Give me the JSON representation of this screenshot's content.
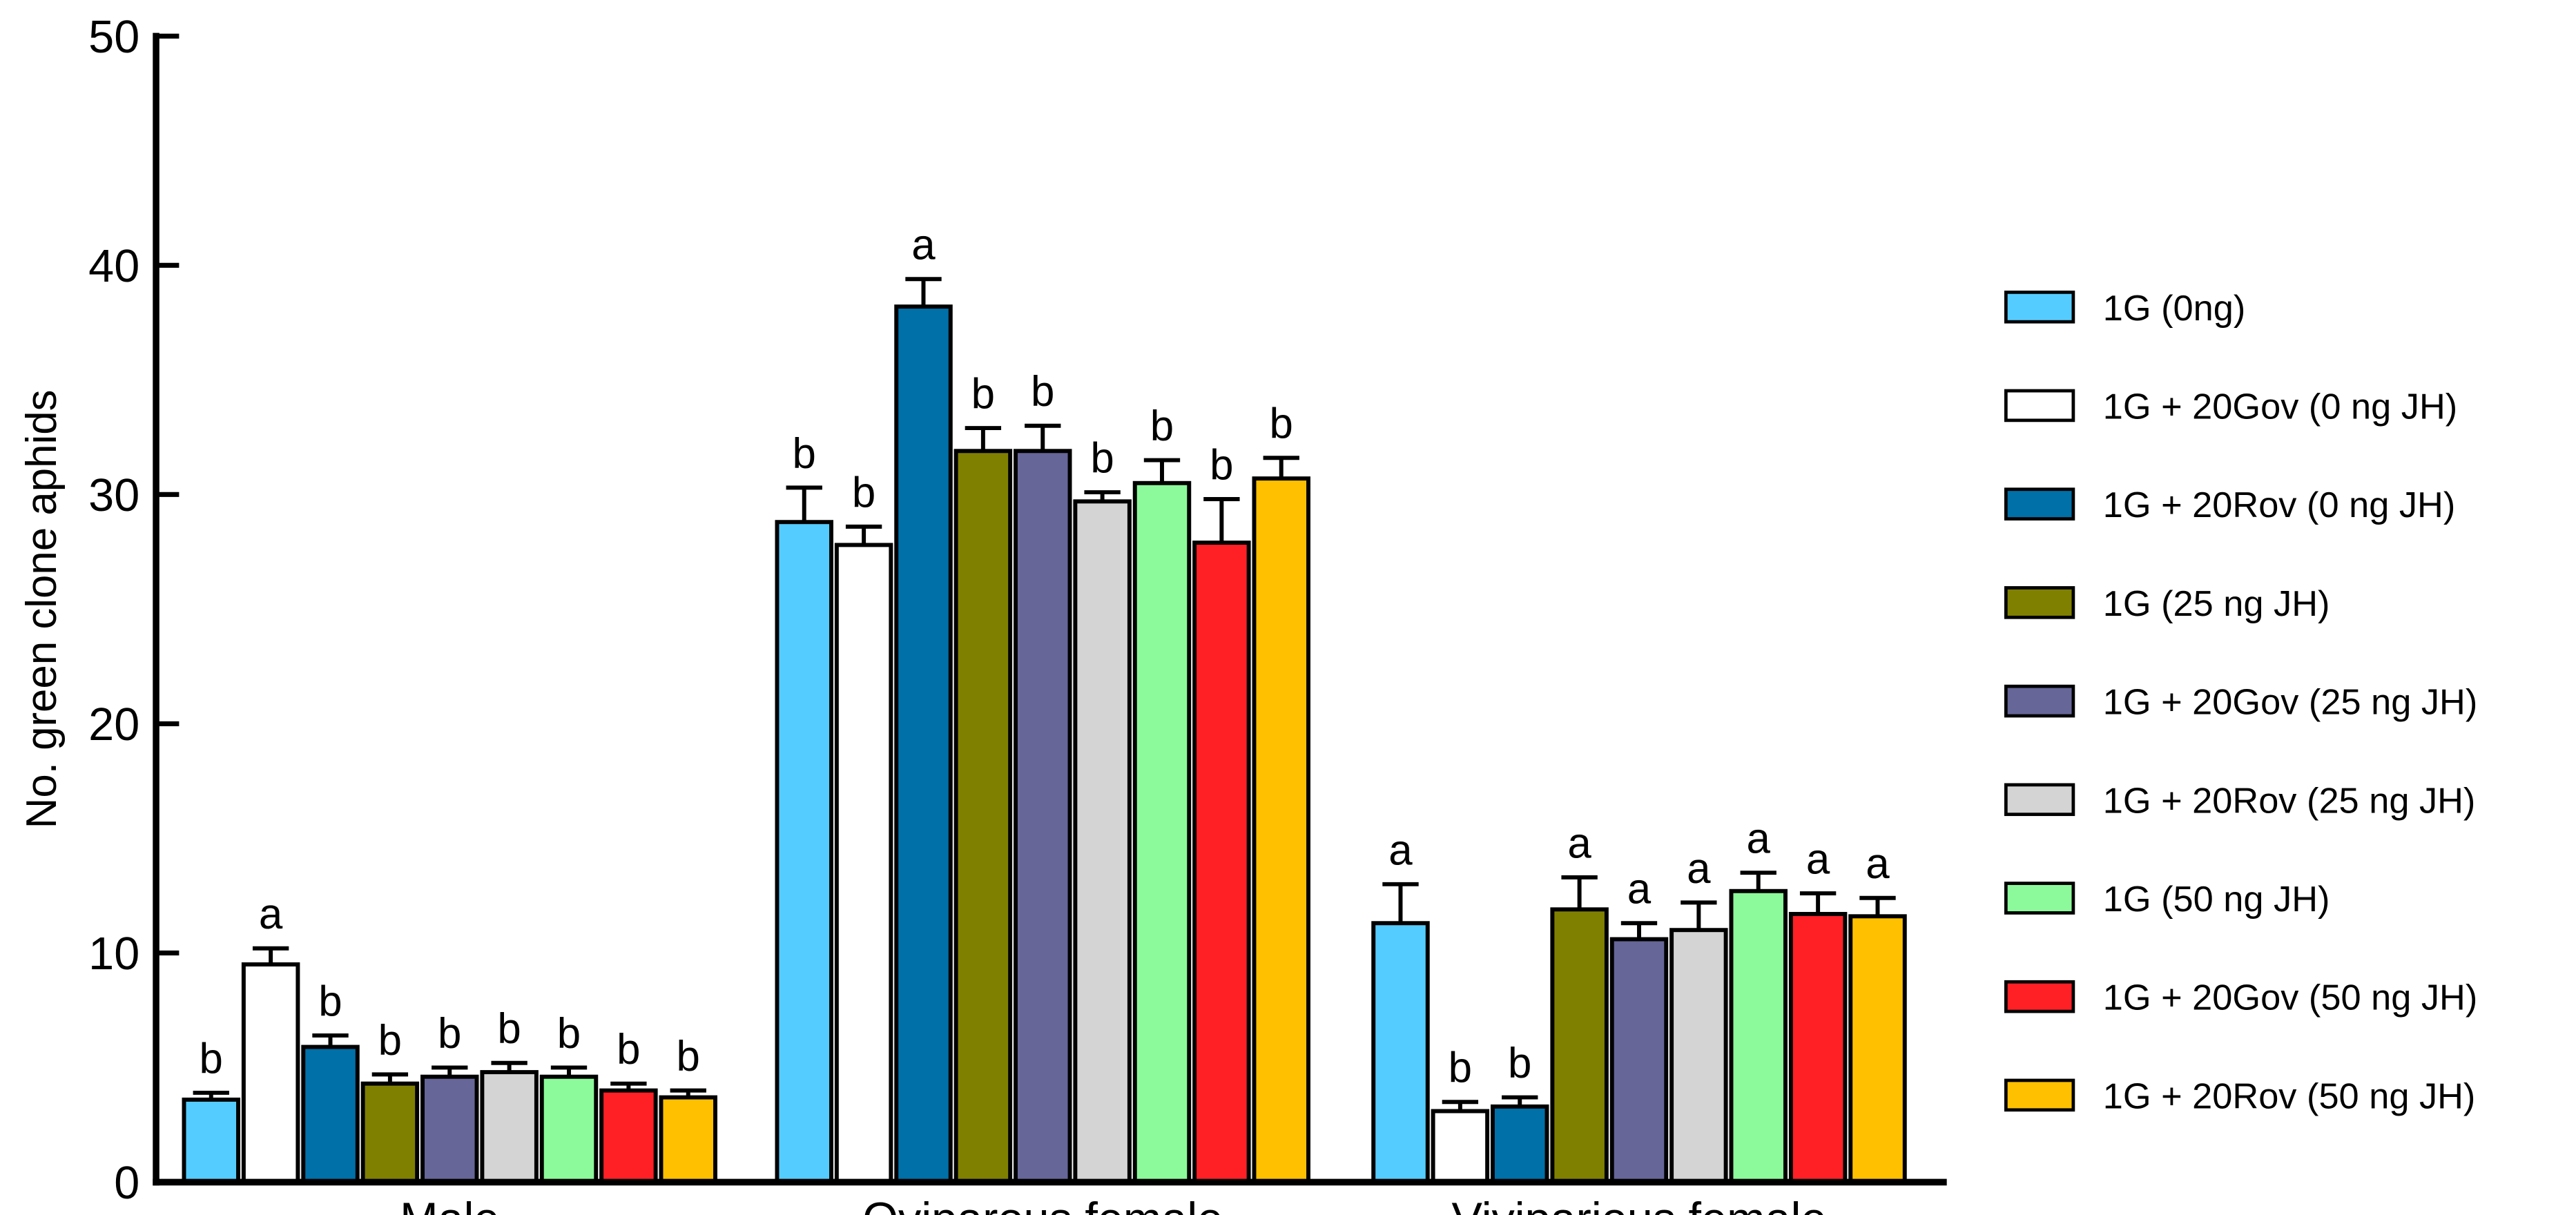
{
  "chart_data": {
    "type": "bar",
    "title": "",
    "xlabel": "",
    "ylabel": "No. green clone aphids",
    "ylim": [
      0,
      50
    ],
    "yticks": [
      "0",
      "10",
      "20",
      "30",
      "40",
      "50"
    ],
    "grid": false,
    "legend_position": "right",
    "categories": [
      "Male",
      "Oviparous female",
      "Viviparious female"
    ],
    "series": [
      {
        "name": "1G (0ng)",
        "color": "#55CCFF",
        "values": [
          3.6,
          28.8,
          11.3
        ],
        "errors": [
          0.3,
          1.5,
          1.7
        ],
        "letters": [
          "b",
          "b",
          "a"
        ]
      },
      {
        "name": "1G + 20Gov (0 ng JH)",
        "color": "#FFFFFF",
        "values": [
          9.5,
          27.8,
          3.1
        ],
        "errors": [
          0.7,
          0.8,
          0.4
        ],
        "letters": [
          "a",
          "b",
          "b"
        ]
      },
      {
        "name": "1G + 20Rov (0 ng JH)",
        "color": "#0070A8",
        "values": [
          5.9,
          38.2,
          3.3
        ],
        "errors": [
          0.5,
          1.2,
          0.4
        ],
        "letters": [
          "b",
          "a",
          "b"
        ]
      },
      {
        "name": "1G (25 ng JH)",
        "color": "#808000",
        "values": [
          4.3,
          31.9,
          11.9
        ],
        "errors": [
          0.4,
          1.0,
          1.4
        ],
        "letters": [
          "b",
          "b",
          "a"
        ]
      },
      {
        "name": "1G + 20Gov (25 ng JH)",
        "color": "#666699",
        "values": [
          4.6,
          31.9,
          10.6
        ],
        "errors": [
          0.4,
          1.1,
          0.7
        ],
        "letters": [
          "b",
          "b",
          "a"
        ]
      },
      {
        "name": "1G + 20Rov (25 ng JH)",
        "color": "#D4D4D4",
        "values": [
          4.8,
          29.7,
          11.0
        ],
        "errors": [
          0.4,
          0.4,
          1.2
        ],
        "letters": [
          "b",
          "b",
          "a"
        ]
      },
      {
        "name": "1G (50 ng JH)",
        "color": "#8CFA9A",
        "values": [
          4.6,
          30.5,
          12.7
        ],
        "errors": [
          0.4,
          1.0,
          0.8
        ],
        "letters": [
          "b",
          "b",
          "a"
        ]
      },
      {
        "name": "1G + 20Gov (50 ng JH)",
        "color": "#FF2026",
        "values": [
          4.0,
          27.9,
          11.7
        ],
        "errors": [
          0.3,
          1.9,
          0.9
        ],
        "letters": [
          "b",
          "b",
          "a"
        ]
      },
      {
        "name": "1G + 20Rov (50 ng JH)",
        "color": "#FFC000",
        "values": [
          3.7,
          30.7,
          11.6
        ],
        "errors": [
          0.3,
          0.9,
          0.8
        ],
        "letters": [
          "b",
          "b",
          "a"
        ]
      }
    ]
  }
}
